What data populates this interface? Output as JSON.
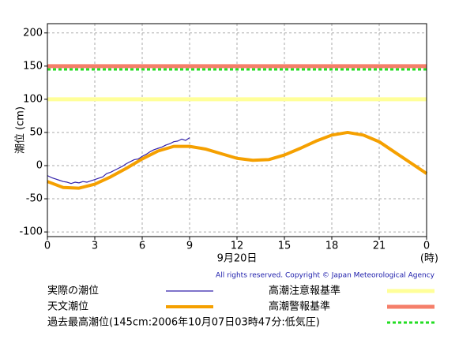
{
  "chart_data": {
    "type": "line",
    "y_label": "潮位 (cm)",
    "x_label": "(時)",
    "date_label": "9月20日",
    "copyright": "All rights reserved. Copyright © Japan Meteorological Agency",
    "xlim": [
      0,
      24
    ],
    "xticks": [
      0,
      3,
      6,
      9,
      12,
      15,
      18,
      21,
      {
        "value": 24,
        "label": "0"
      }
    ],
    "ylim": [
      -107,
      214
    ],
    "yticks": [
      -100,
      -50,
      0,
      50,
      100,
      150,
      200
    ],
    "grid": true,
    "series": [
      {
        "name": "実際の潮位",
        "color": "#3322aa",
        "x": [
          0,
          0.25,
          0.5,
          0.75,
          1,
          1.25,
          1.5,
          1.75,
          2,
          2.25,
          2.5,
          2.75,
          3,
          3.25,
          3.5,
          3.75,
          4,
          4.25,
          4.5,
          4.75,
          5,
          5.25,
          5.5,
          5.75,
          6,
          6.25,
          6.5,
          6.75,
          7,
          7.25,
          7.5,
          7.75,
          8,
          8.25,
          8.5,
          8.75,
          9
        ],
        "values": [
          -15,
          -18,
          -20,
          -22,
          -24,
          -25,
          -27,
          -25,
          -26,
          -24,
          -25,
          -23,
          -21,
          -19,
          -17,
          -12,
          -10,
          -7,
          -4,
          -1,
          3,
          6,
          9,
          10,
          14,
          17,
          21,
          24,
          26,
          28,
          31,
          33,
          36,
          37,
          40,
          38,
          42
        ]
      },
      {
        "name": "天文潮位",
        "color": "#f5a000",
        "x": [
          0,
          1,
          2,
          3,
          4,
          5,
          6,
          7,
          8,
          9,
          10,
          11,
          12,
          13,
          14,
          15,
          16,
          17,
          18,
          19,
          20,
          21,
          22,
          23,
          24
        ],
        "values": [
          -24,
          -33,
          -34,
          -28,
          -17,
          -4,
          10,
          22,
          29,
          29,
          25,
          18,
          11,
          8,
          9,
          16,
          26,
          37,
          46,
          50,
          46,
          36,
          20,
          4,
          -12
        ]
      }
    ],
    "reference_lines": [
      {
        "name": "高潮注意報基準",
        "value": 100,
        "color": "#ffff99",
        "style": "solid"
      },
      {
        "name": "高潮警報基準",
        "value": 150,
        "color": "#f57f6a",
        "style": "solid"
      },
      {
        "name": "過去最高潮位(145cm:2006年10月07日03時47分:低気圧)",
        "value": 145,
        "color": "#22dd22",
        "style": "dotted"
      }
    ]
  }
}
